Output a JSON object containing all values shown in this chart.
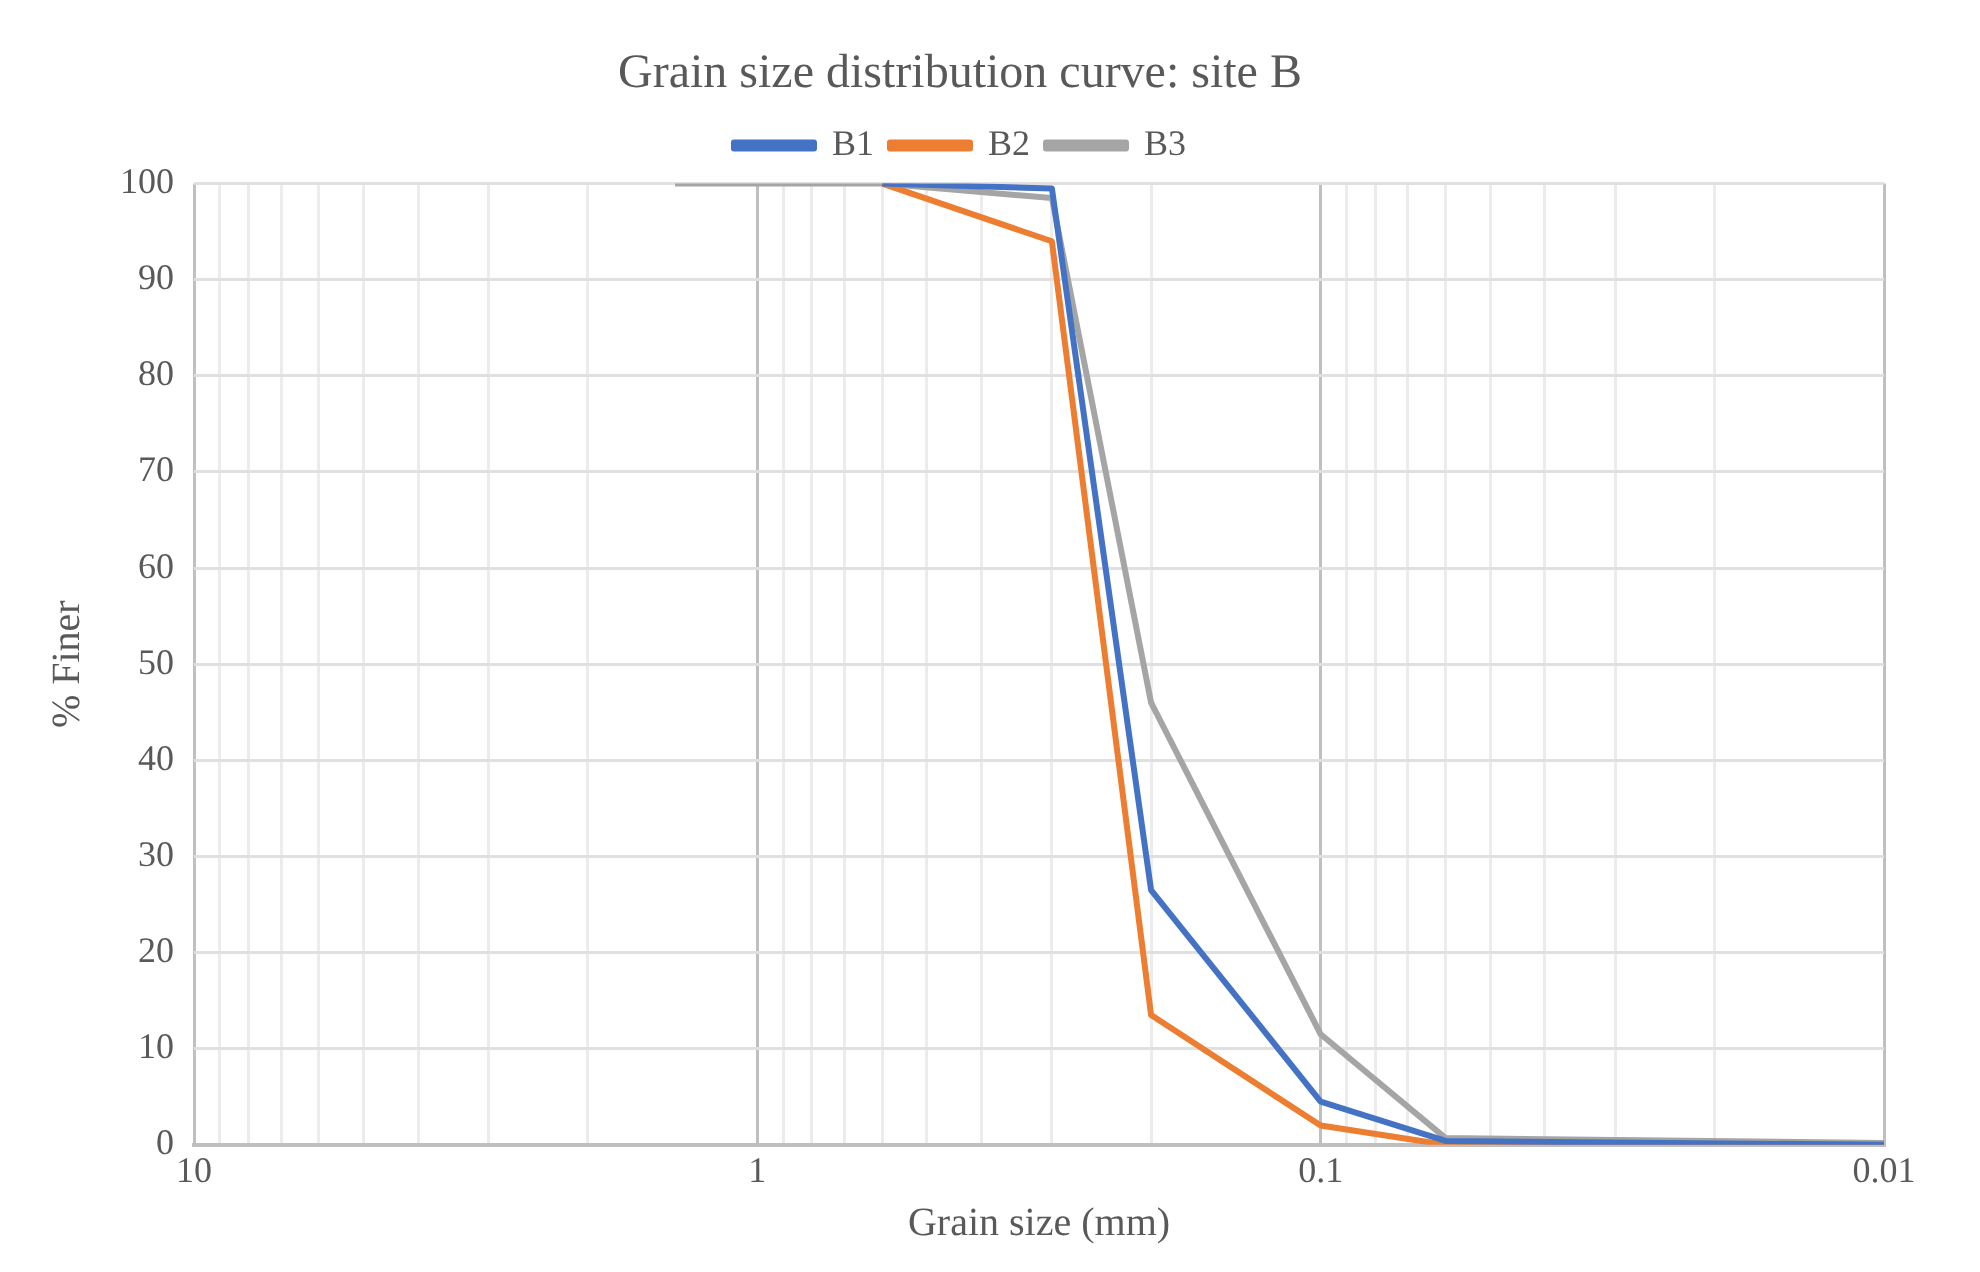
{
  "chart_data": {
    "type": "line",
    "title": "Grain size distribution curve: site B",
    "xlabel": "Grain size (mm)",
    "ylabel": "% Finer",
    "x": [
      1.4,
      0.6,
      0.3,
      0.2,
      0.1,
      0.06,
      0.01
    ],
    "series": [
      {
        "name": "B1",
        "color": "#4472c4",
        "values": [
          null,
          100,
          99.5,
          26.5,
          4.5,
          0.4,
          0
        ]
      },
      {
        "name": "B2",
        "color": "#ed7d31",
        "values": [
          null,
          100,
          94,
          13.5,
          2,
          0,
          0
        ]
      },
      {
        "name": "B3",
        "color": "#a5a5a5",
        "values": [
          100,
          100,
          98.5,
          46,
          11.5,
          0.7,
          0.2
        ]
      }
    ],
    "log": "x",
    "xlim": [
      10,
      0.01
    ],
    "xticks": [
      10,
      {
        "value": 9,
        "label": null
      },
      {
        "value": 8,
        "label": null
      },
      {
        "value": 7,
        "label": null
      },
      {
        "value": 6,
        "label": null
      },
      {
        "value": 5,
        "label": null
      },
      {
        "value": 4,
        "label": null
      },
      {
        "value": 3,
        "label": null
      },
      {
        "value": 2,
        "label": null
      },
      1,
      {
        "value": 0.9,
        "label": null
      },
      {
        "value": 0.8,
        "label": null
      },
      {
        "value": 0.7,
        "label": null
      },
      {
        "value": 0.6,
        "label": null
      },
      {
        "value": 0.5,
        "label": null
      },
      {
        "value": 0.4,
        "label": null
      },
      {
        "value": 0.3,
        "label": null
      },
      {
        "value": 0.2,
        "label": null
      },
      0.1,
      {
        "value": 0.09,
        "label": null
      },
      {
        "value": 0.08,
        "label": null
      },
      {
        "value": 0.07,
        "label": null
      },
      {
        "value": 0.06,
        "label": null
      },
      {
        "value": 0.05,
        "label": null
      },
      {
        "value": 0.04,
        "label": null
      },
      {
        "value": 0.03,
        "label": null
      },
      {
        "value": 0.02,
        "label": null
      },
      0.01
    ],
    "ylim": [
      0,
      100
    ],
    "yticks": [
      0,
      10,
      20,
      30,
      40,
      50,
      60,
      70,
      80,
      90,
      100
    ],
    "grid": true,
    "legend": "top",
    "marker": "none",
    "line_style": "solid"
  }
}
